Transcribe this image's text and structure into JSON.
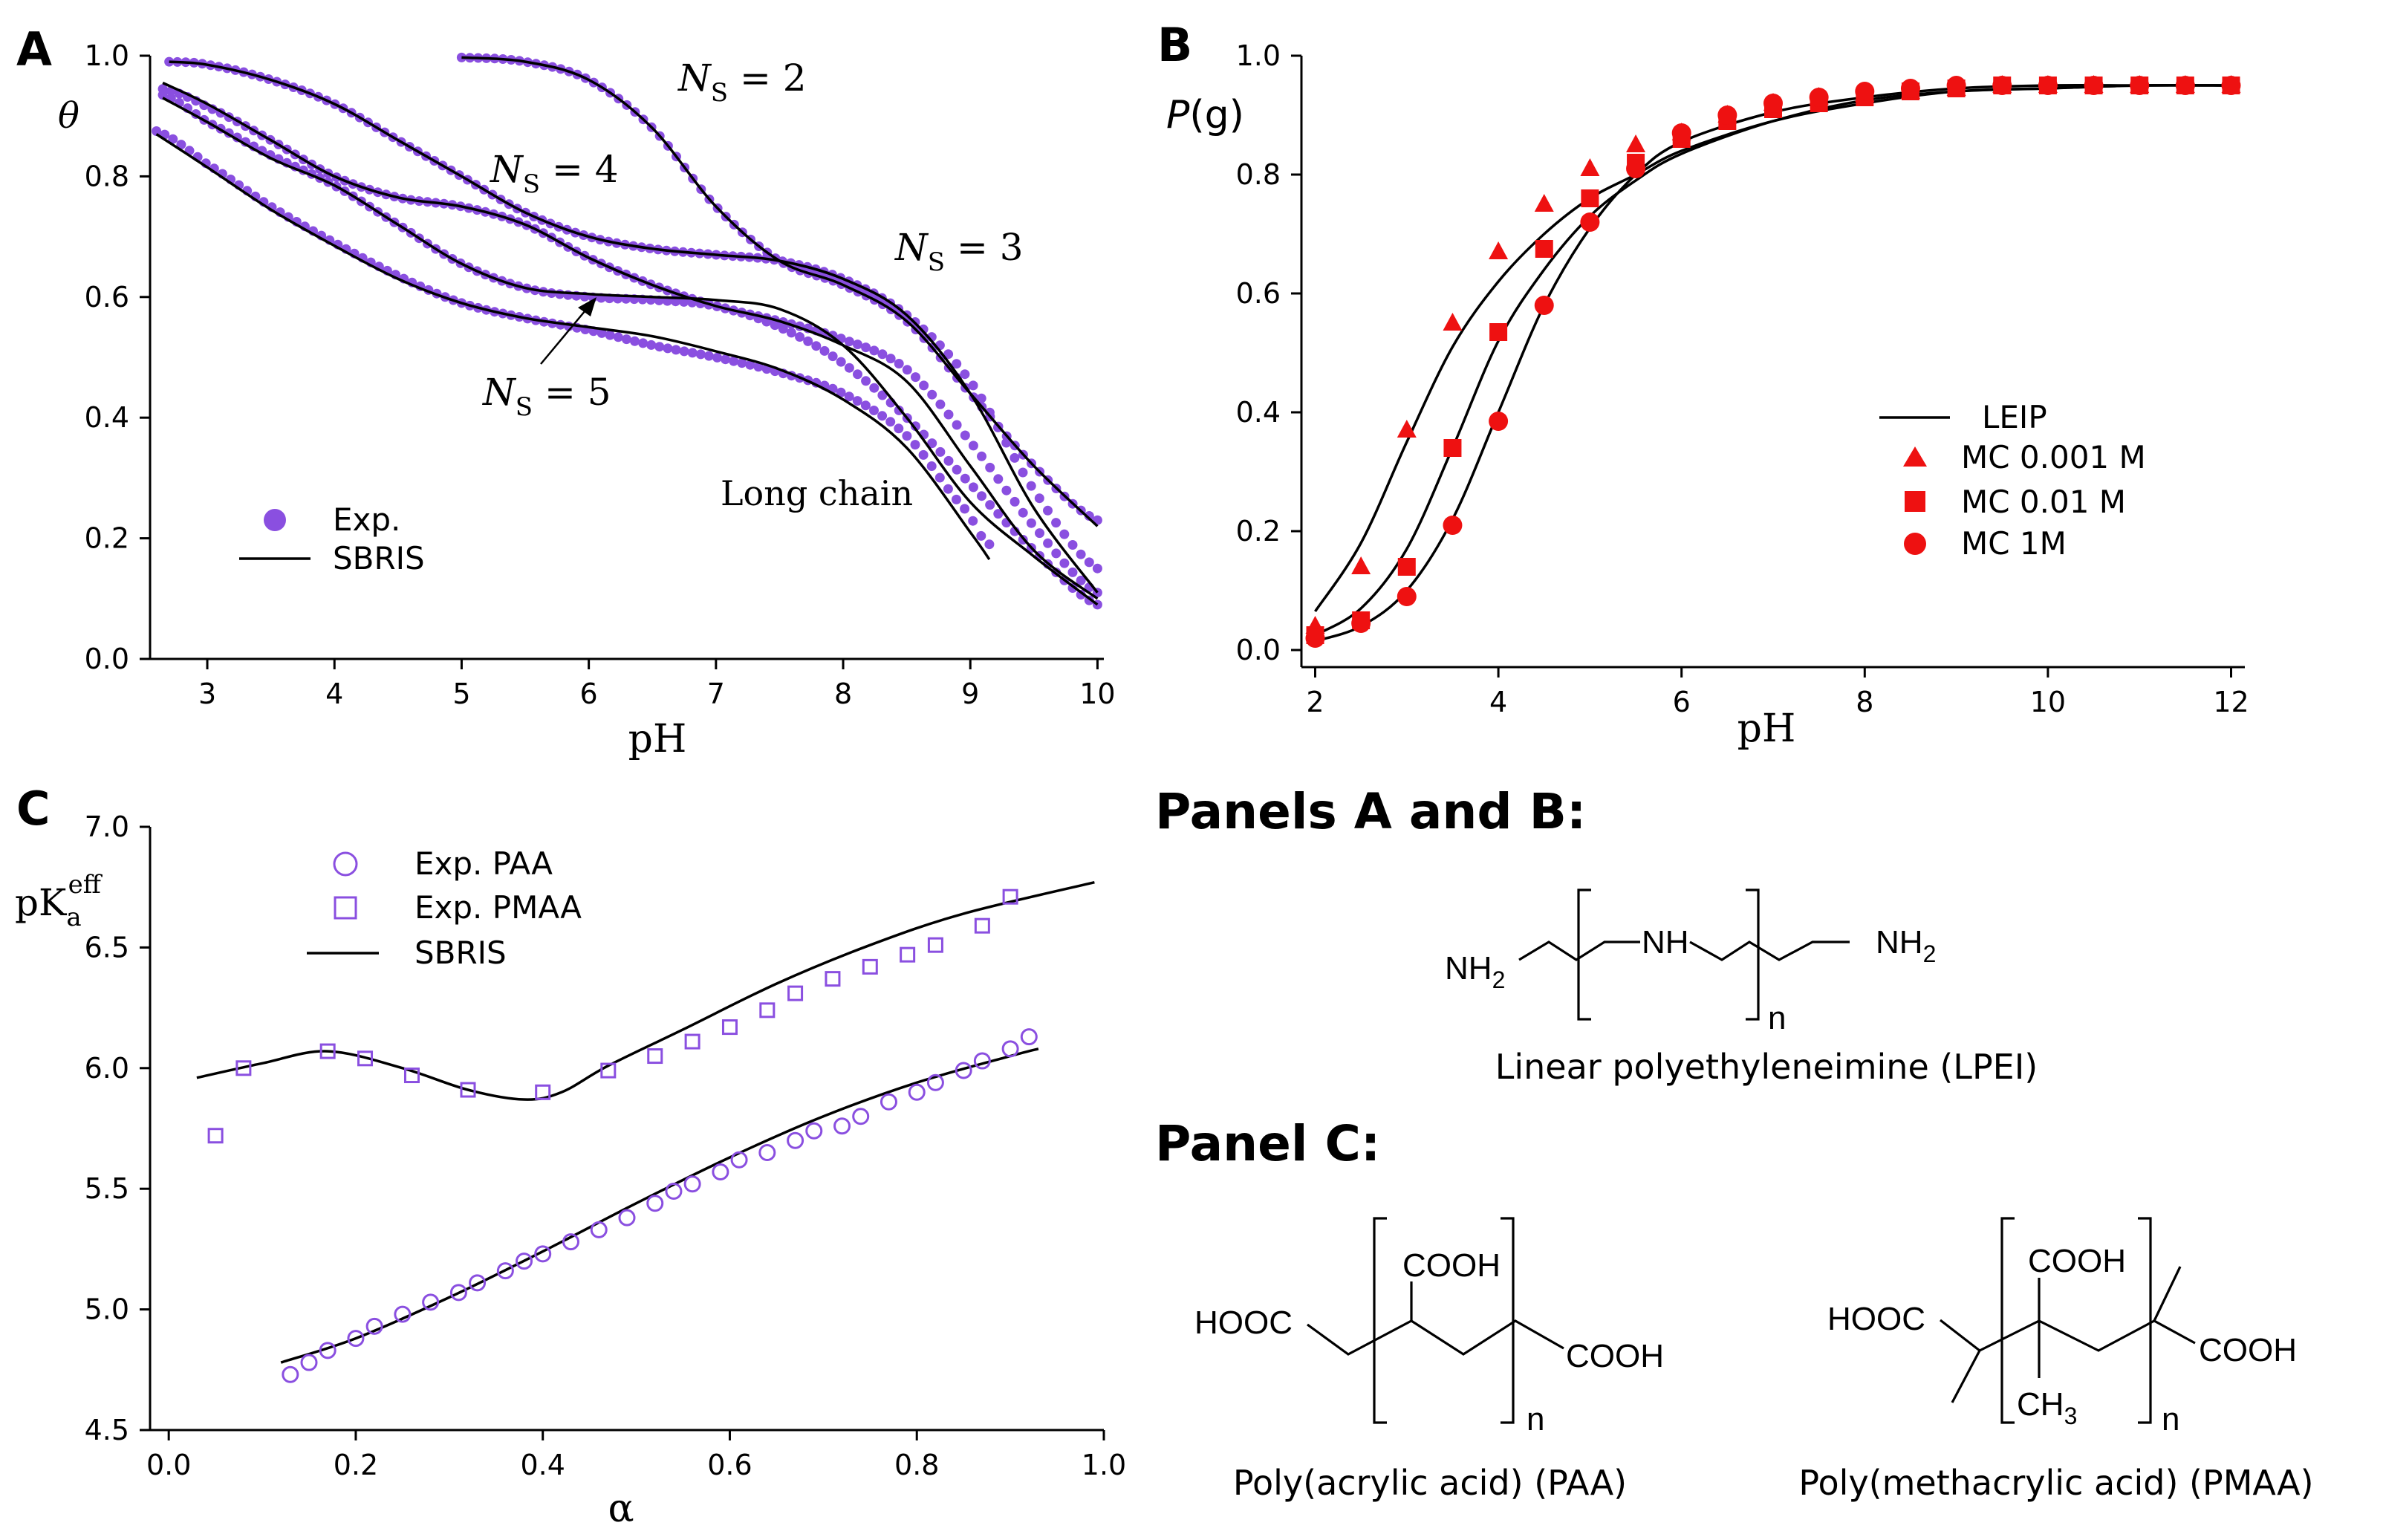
{
  "chart_data": [
    {
      "panel": "A",
      "type": "line",
      "xlabel": "pH",
      "ylabel": "θ",
      "xlim": [
        2.55,
        10.05
      ],
      "ylim": [
        0.0,
        1.0
      ],
      "xticks": [
        "3",
        "4",
        "5",
        "6",
        "7",
        "8",
        "9",
        "10"
      ],
      "yticks": [
        "0.0",
        "0.2",
        "0.4",
        "0.6",
        "0.8",
        "1.0"
      ],
      "legend": {
        "position": "bottom-left",
        "entries": [
          "Exp.",
          "SBRIS"
        ]
      },
      "marker_color": "#8a4fe0",
      "annotations": [
        {
          "text": "N",
          "sub": "S",
          "rest": " = 2"
        },
        {
          "text": "N",
          "sub": "S",
          "rest": " = 3"
        },
        {
          "text": "N",
          "sub": "S",
          "rest": " = 4"
        },
        {
          "text": "N",
          "sub": "S",
          "rest": " = 5"
        },
        {
          "text": "Long chain"
        }
      ],
      "series": [
        {
          "name": "N_S = 2",
          "x": [
            5.0,
            5.5,
            6.0,
            6.5,
            7.0,
            7.5,
            8.0,
            8.5,
            9.0,
            9.5,
            10.0
          ],
          "exp": [
            0.997,
            0.99,
            0.96,
            0.88,
            0.75,
            0.66,
            0.62,
            0.56,
            0.44,
            0.32,
            0.23
          ],
          "fit": [
            0.997,
            0.99,
            0.96,
            0.88,
            0.75,
            0.66,
            0.62,
            0.56,
            0.44,
            0.32,
            0.22
          ]
        },
        {
          "name": "N_S = 3",
          "x": [
            2.7,
            3.0,
            3.5,
            4.0,
            4.5,
            5.0,
            5.5,
            6.0,
            6.5,
            7.0,
            7.5,
            8.0,
            8.5,
            9.0,
            9.5,
            10.0
          ],
          "exp": [
            0.99,
            0.985,
            0.96,
            0.92,
            0.86,
            0.8,
            0.74,
            0.7,
            0.68,
            0.67,
            0.66,
            0.63,
            0.57,
            0.46,
            0.28,
            0.15
          ],
          "fit": [
            0.99,
            0.985,
            0.96,
            0.92,
            0.86,
            0.8,
            0.74,
            0.7,
            0.68,
            0.67,
            0.66,
            0.63,
            0.57,
            0.44,
            0.25,
            0.11
          ]
        },
        {
          "name": "N_S = 4",
          "x": [
            2.65,
            3.0,
            3.5,
            4.0,
            4.5,
            5.0,
            5.5,
            6.0,
            6.5,
            7.0,
            7.5,
            8.0,
            8.5,
            9.0,
            9.5,
            10.0
          ],
          "exp": [
            0.945,
            0.915,
            0.86,
            0.8,
            0.765,
            0.75,
            0.72,
            0.665,
            0.62,
            0.585,
            0.56,
            0.53,
            0.48,
            0.36,
            0.22,
            0.11
          ],
          "fit": [
            0.955,
            0.92,
            0.86,
            0.8,
            0.765,
            0.75,
            0.72,
            0.665,
            0.62,
            0.585,
            0.56,
            0.52,
            0.46,
            0.32,
            0.18,
            0.1
          ]
        },
        {
          "name": "N_S = 5",
          "x": [
            2.65,
            3.0,
            3.5,
            4.0,
            4.5,
            5.0,
            5.5,
            6.0,
            6.5,
            7.0,
            7.5,
            8.0,
            8.5,
            9.0,
            9.5,
            10.0
          ],
          "exp": [
            0.935,
            0.89,
            0.835,
            0.785,
            0.72,
            0.655,
            0.615,
            0.6,
            0.595,
            0.585,
            0.55,
            0.49,
            0.4,
            0.29,
            0.18,
            0.09
          ],
          "fit": [
            0.93,
            0.89,
            0.83,
            0.785,
            0.72,
            0.655,
            0.615,
            0.605,
            0.6,
            0.595,
            0.58,
            0.52,
            0.4,
            0.26,
            0.17,
            0.09
          ]
        },
        {
          "name": "Long chain",
          "x": [
            2.6,
            3.0,
            3.5,
            4.0,
            4.5,
            5.0,
            5.5,
            6.0,
            6.5,
            7.0,
            7.5,
            8.0,
            8.5,
            9.0,
            9.15
          ],
          "exp": [
            0.875,
            0.82,
            0.75,
            0.69,
            0.635,
            0.59,
            0.565,
            0.545,
            0.52,
            0.5,
            0.475,
            0.44,
            0.37,
            0.24,
            0.19
          ],
          "fit": [
            0.87,
            0.815,
            0.745,
            0.685,
            0.63,
            0.59,
            0.565,
            0.55,
            0.535,
            0.51,
            0.48,
            0.43,
            0.35,
            0.21,
            0.165
          ]
        }
      ]
    },
    {
      "panel": "B",
      "type": "scatter",
      "xlabel": "pH",
      "ylabel": "P(g)",
      "xlim": [
        1.85,
        12.15
      ],
      "ylim": [
        0.0,
        1.0
      ],
      "xticks": [
        "2",
        "4",
        "6",
        "8",
        "10",
        "12"
      ],
      "yticks": [
        "0.0",
        "0.2",
        "0.4",
        "0.6",
        "0.8",
        "1.0"
      ],
      "marker_color": "#ee1111",
      "legend": {
        "position": "middle-right",
        "entries": [
          "LEIP",
          "MC 0.001 M",
          "MC 0.01 M",
          "MC 1M"
        ]
      },
      "series": [
        {
          "name": "MC 0.001 M",
          "marker": "triangle",
          "x": [
            2.0,
            2.5,
            3.0,
            3.5,
            4.0,
            4.5,
            5.0,
            5.5,
            6.0,
            6.5,
            7.0,
            7.5,
            8.0,
            8.5,
            9.0,
            9.5,
            10.0,
            10.5,
            11.0,
            11.5,
            12.0
          ],
          "y": [
            0.04,
            0.14,
            0.37,
            0.55,
            0.67,
            0.75,
            0.81,
            0.85,
            0.87,
            0.9,
            0.92,
            0.93,
            0.935,
            0.94,
            0.945,
            0.95,
            0.95,
            0.95,
            0.95,
            0.95,
            0.95
          ]
        },
        {
          "name": "MC 0.01 M",
          "marker": "square",
          "x": [
            2.0,
            2.5,
            3.0,
            3.5,
            4.0,
            4.5,
            5.0,
            5.5,
            6.0,
            6.5,
            7.0,
            7.5,
            8.0,
            8.5,
            9.0,
            9.5,
            10.0,
            10.5,
            11.0,
            11.5,
            12.0
          ],
          "y": [
            0.025,
            0.05,
            0.14,
            0.34,
            0.535,
            0.675,
            0.76,
            0.82,
            0.86,
            0.89,
            0.91,
            0.92,
            0.93,
            0.94,
            0.945,
            0.95,
            0.95,
            0.95,
            0.95,
            0.95,
            0.95
          ]
        },
        {
          "name": "MC 1M",
          "marker": "circle",
          "x": [
            2.0,
            2.5,
            3.0,
            3.5,
            4.0,
            4.5,
            5.0,
            5.5,
            6.0,
            6.5,
            7.0,
            7.5,
            8.0,
            8.5,
            9.0,
            9.5,
            10.0,
            10.5,
            11.0,
            11.5,
            12.0
          ],
          "y": [
            0.02,
            0.045,
            0.09,
            0.21,
            0.385,
            0.58,
            0.72,
            0.81,
            0.87,
            0.9,
            0.92,
            0.93,
            0.94,
            0.945,
            0.95,
            0.95,
            0.95,
            0.95,
            0.95,
            0.95,
            0.95
          ]
        },
        {
          "name": "LEIP 0.001 M",
          "line": true,
          "x": [
            2.0,
            2.5,
            3.0,
            3.5,
            4.0,
            4.5,
            5.0,
            5.5,
            6.0,
            7.0,
            8.0,
            9.0,
            10.0,
            11.0,
            12.0
          ],
          "y": [
            0.065,
            0.18,
            0.35,
            0.51,
            0.62,
            0.7,
            0.76,
            0.8,
            0.84,
            0.89,
            0.92,
            0.94,
            0.945,
            0.95,
            0.95
          ]
        },
        {
          "name": "LEIP 0.01 M",
          "line": true,
          "x": [
            2.0,
            2.5,
            3.0,
            3.5,
            4.0,
            4.5,
            5.0,
            5.5,
            6.0,
            7.0,
            8.0,
            9.0,
            10.0,
            11.0,
            12.0
          ],
          "y": [
            0.025,
            0.07,
            0.17,
            0.34,
            0.52,
            0.64,
            0.73,
            0.79,
            0.835,
            0.89,
            0.925,
            0.94,
            0.945,
            0.95,
            0.95
          ]
        },
        {
          "name": "LEIP 1M",
          "line": true,
          "x": [
            2.0,
            2.5,
            3.0,
            3.5,
            4.0,
            4.5,
            5.0,
            5.5,
            6.0,
            7.0,
            8.0,
            9.0,
            10.0,
            11.0,
            12.0
          ],
          "y": [
            0.015,
            0.04,
            0.1,
            0.22,
            0.4,
            0.58,
            0.71,
            0.8,
            0.855,
            0.905,
            0.93,
            0.945,
            0.95,
            0.95,
            0.95
          ]
        }
      ]
    },
    {
      "panel": "C",
      "type": "scatter",
      "xlabel": "α",
      "ylabel_main": "pK",
      "ylabel_sub": "a",
      "ylabel_sup": "eff",
      "xlim": [
        -0.02,
        1.0
      ],
      "ylim": [
        4.45,
        7.0
      ],
      "xticks": [
        "0.0",
        "0.2",
        "0.4",
        "0.6",
        "0.8",
        "1.0"
      ],
      "yticks": [
        "4.5",
        "5.0",
        "5.5",
        "6.0",
        "6.5",
        "7.0"
      ],
      "marker_color": "#8a4fe0",
      "legend": {
        "position": "top-left",
        "entries": [
          "Exp. PAA",
          "Exp. PMAA",
          "SBRIS"
        ]
      },
      "series": [
        {
          "name": "Exp. PAA",
          "marker": "open-circle",
          "x": [
            0.13,
            0.15,
            0.17,
            0.2,
            0.22,
            0.25,
            0.28,
            0.31,
            0.33,
            0.36,
            0.38,
            0.4,
            0.43,
            0.46,
            0.49,
            0.52,
            0.54,
            0.56,
            0.59,
            0.61,
            0.64,
            0.67,
            0.69,
            0.72,
            0.74,
            0.77,
            0.8,
            0.82,
            0.85,
            0.87,
            0.9,
            0.92
          ],
          "y": [
            4.73,
            4.78,
            4.83,
            4.88,
            4.93,
            4.98,
            5.03,
            5.07,
            5.11,
            5.16,
            5.2,
            5.23,
            5.28,
            5.33,
            5.38,
            5.44,
            5.49,
            5.52,
            5.57,
            5.62,
            5.65,
            5.7,
            5.74,
            5.76,
            5.8,
            5.86,
            5.9,
            5.94,
            5.99,
            6.03,
            6.08,
            6.13
          ]
        },
        {
          "name": "Exp. PMAA",
          "marker": "open-square",
          "x": [
            0.05,
            0.08,
            0.17,
            0.21,
            0.26,
            0.32,
            0.4,
            0.47,
            0.52,
            0.56,
            0.6,
            0.64,
            0.67,
            0.71,
            0.75,
            0.79,
            0.82,
            0.87,
            0.9
          ],
          "y": [
            5.72,
            6.0,
            6.07,
            6.04,
            5.97,
            5.91,
            5.9,
            5.99,
            6.05,
            6.11,
            6.17,
            6.24,
            6.31,
            6.37,
            6.42,
            6.47,
            6.51,
            6.59,
            6.71
          ]
        },
        {
          "name": "SBRIS PAA",
          "line": true,
          "x": [
            0.12,
            0.2,
            0.3,
            0.4,
            0.5,
            0.6,
            0.7,
            0.8,
            0.9,
            0.93
          ],
          "y": [
            4.78,
            4.88,
            5.05,
            5.24,
            5.44,
            5.63,
            5.8,
            5.94,
            6.05,
            6.08
          ]
        },
        {
          "name": "SBRIS PMAA",
          "line": true,
          "x": [
            0.03,
            0.1,
            0.17,
            0.25,
            0.32,
            0.38,
            0.42,
            0.47,
            0.55,
            0.65,
            0.75,
            0.85,
            0.99
          ],
          "y": [
            5.96,
            6.02,
            6.07,
            6.0,
            5.91,
            5.87,
            5.9,
            6.01,
            6.16,
            6.35,
            6.51,
            6.64,
            6.77
          ]
        }
      ]
    }
  ],
  "chemistry": {
    "heading_ab": "Panels A and B:",
    "heading_c": "Panel C:",
    "lpei": {
      "nh2_left": "NH",
      "nh_mid": "NH",
      "nh2_right": "NH",
      "sub2": "2",
      "n": "n",
      "name": "Linear polyethyleneimine (LPEI)"
    },
    "paa": {
      "cooh_top": "COOH",
      "hooc_left": "HOOC",
      "cooh_right": "COOH",
      "n": "n",
      "name": "Poly(acrylic acid) (PAA)"
    },
    "pmaa": {
      "cooh_top": "COOH",
      "hooc_left": "HOOC",
      "cooh_right": "COOH",
      "ch3": "CH",
      "sub3": "3",
      "n": "n",
      "name": "Poly(methacrylic acid) (PMAA)"
    }
  }
}
